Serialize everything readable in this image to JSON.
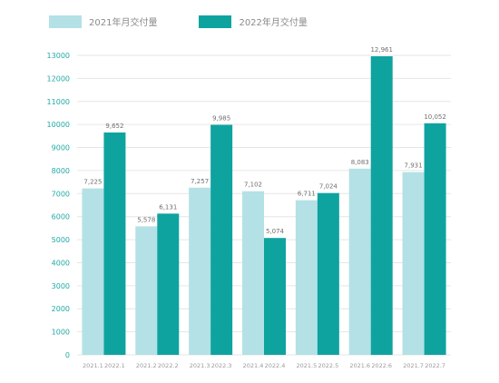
{
  "legend": {
    "series1": "2021年月交付量",
    "series2": "2022年月交付量",
    "color1": "#b3e1e6",
    "color2": "#0fa3a0"
  },
  "chart_data": {
    "type": "bar",
    "ylim": [
      0,
      13000
    ],
    "yticks": [
      0,
      1000,
      2000,
      3000,
      4000,
      5000,
      6000,
      7000,
      8000,
      9000,
      10000,
      11000,
      12000,
      13000
    ],
    "grid": true,
    "legend_position": "top-left",
    "groups": [
      {
        "labels": [
          "2021.1",
          "2022.1"
        ],
        "values": [
          7225,
          9652
        ],
        "data_labels": [
          "7,225",
          "9,652"
        ]
      },
      {
        "labels": [
          "2021.2",
          "2022.2"
        ],
        "values": [
          5578,
          6131
        ],
        "data_labels": [
          "5,578",
          "6,131"
        ]
      },
      {
        "labels": [
          "2021.3",
          "2022.3"
        ],
        "values": [
          7257,
          9985
        ],
        "data_labels": [
          "7,257",
          "9,985"
        ]
      },
      {
        "labels": [
          "2021.4",
          "2022.4"
        ],
        "values": [
          7102,
          5074
        ],
        "data_labels": [
          "7,102",
          "5,074"
        ]
      },
      {
        "labels": [
          "2021.5",
          "2022.5"
        ],
        "values": [
          6711,
          7024
        ],
        "data_labels": [
          "6,711",
          "7,024"
        ]
      },
      {
        "labels": [
          "2021.6",
          "2022.6"
        ],
        "values": [
          8083,
          12961
        ],
        "data_labels": [
          "8,083",
          "12,961"
        ]
      },
      {
        "labels": [
          "2021.7",
          "2022.7"
        ],
        "values": [
          7931,
          10052
        ],
        "data_labels": [
          "7,931",
          "10,052"
        ]
      }
    ]
  }
}
